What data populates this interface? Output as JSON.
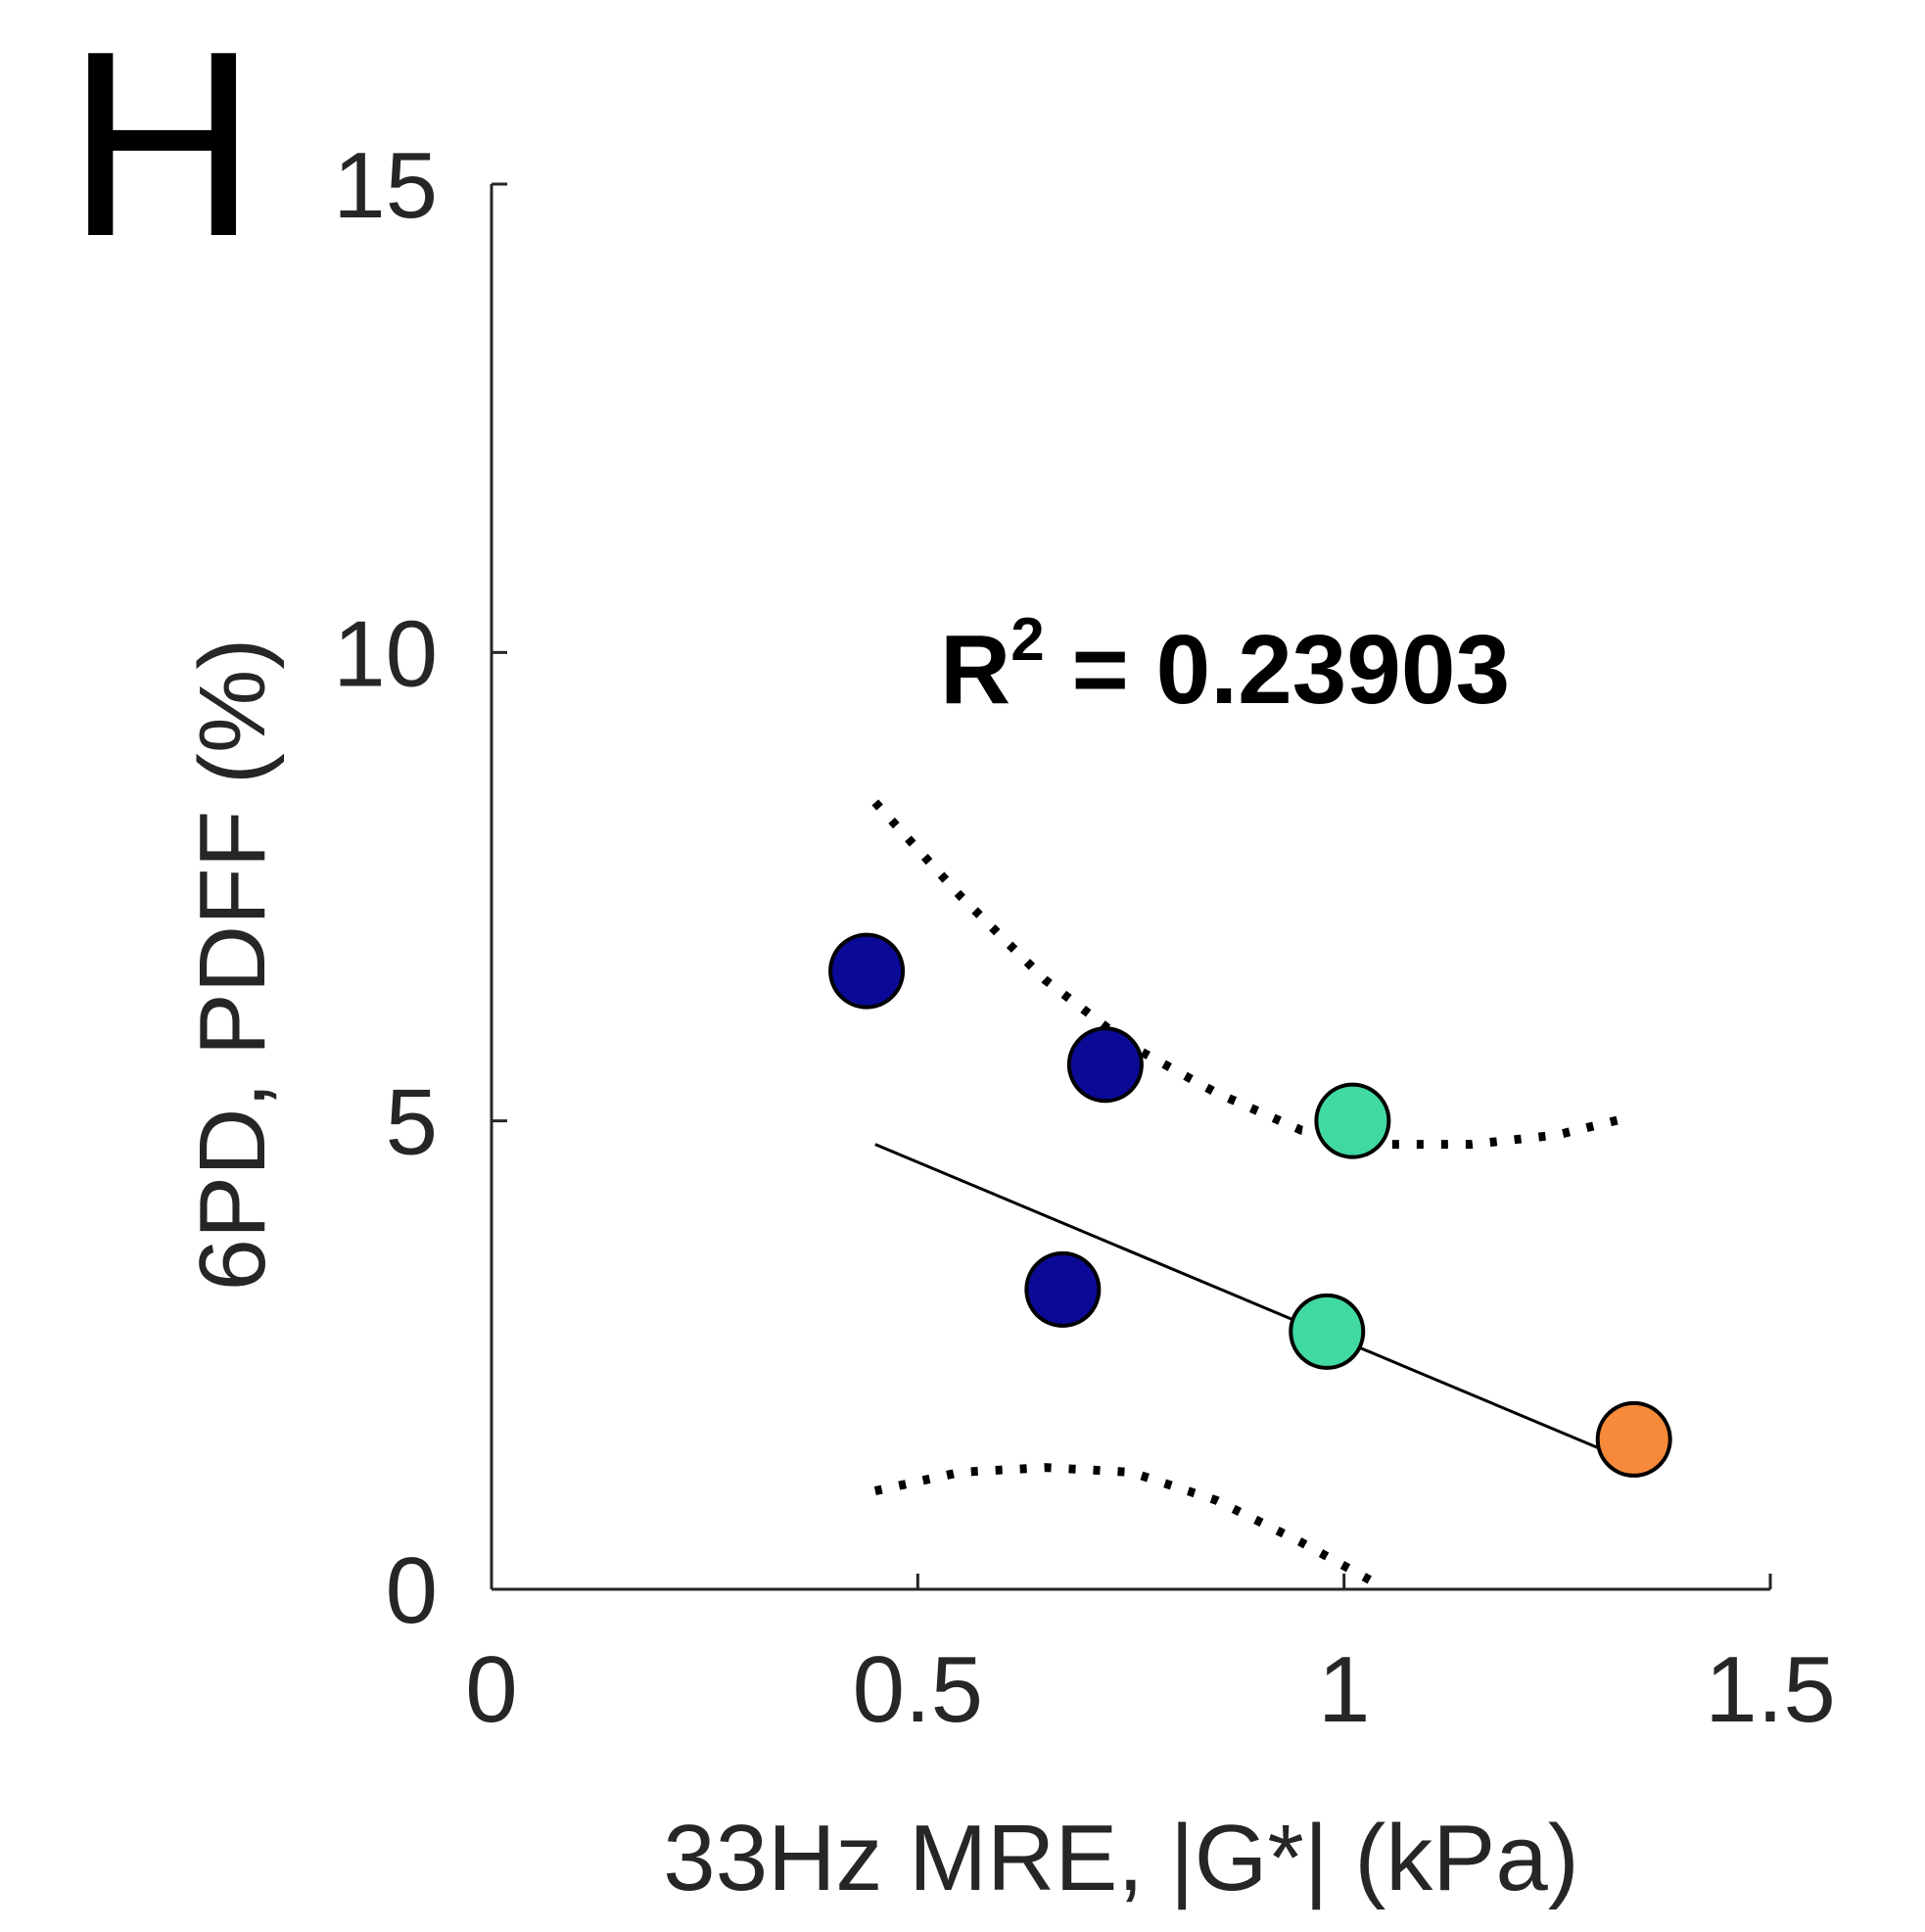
{
  "panel_label": "H",
  "chart_data": {
    "type": "scatter",
    "title": "",
    "xlabel": "33Hz MRE, |G*| (kPa)",
    "ylabel": "6PD, PDFF (%)",
    "xlim": [
      0,
      1.5
    ],
    "ylim": [
      0,
      15
    ],
    "xticks": [
      0,
      0.5,
      1,
      1.5
    ],
    "xtick_labels": [
      "0",
      "0.5",
      "1",
      "1.5"
    ],
    "yticks": [
      0,
      5,
      10,
      15
    ],
    "ytick_labels": [
      "0",
      "5",
      "10",
      "15"
    ],
    "grid": false,
    "annotation": {
      "text": "R",
      "superscript": "2",
      "rest": " = 0.23903",
      "x": 0.52,
      "y": 9.6
    },
    "points": [
      {
        "x": 0.44,
        "y": 6.6,
        "color": "#0a0a96"
      },
      {
        "x": 0.72,
        "y": 5.6,
        "color": "#0a0a96"
      },
      {
        "x": 0.67,
        "y": 3.2,
        "color": "#0a0a96"
      },
      {
        "x": 1.01,
        "y": 5.0,
        "color": "#40d9a0"
      },
      {
        "x": 0.98,
        "y": 2.75,
        "color": "#40d9a0"
      },
      {
        "x": 1.34,
        "y": 1.6,
        "color": "#f78a3a"
      }
    ],
    "fit_line": {
      "x": [
        0.45,
        1.34
      ],
      "y": [
        4.75,
        1.35
      ],
      "color": "#000000"
    },
    "confidence_upper": {
      "x": [
        0.45,
        0.55,
        0.65,
        0.75,
        0.85,
        0.95,
        1.05,
        1.15,
        1.25,
        1.34
      ],
      "y": [
        8.4,
        7.4,
        6.5,
        5.8,
        5.3,
        4.9,
        4.75,
        4.75,
        4.85,
        5.05
      ]
    },
    "confidence_lower": {
      "x": [
        0.45,
        0.55,
        0.65,
        0.75,
        0.85,
        0.95,
        1.03
      ],
      "y": [
        1.05,
        1.25,
        1.3,
        1.25,
        0.95,
        0.5,
        0.1
      ]
    }
  }
}
